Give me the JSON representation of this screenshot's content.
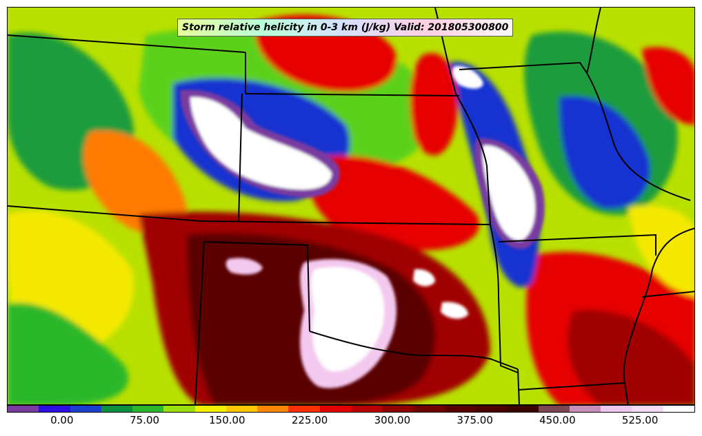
{
  "map": {
    "title": "Storm relative helicity in 0-3 km (J/kg) Valid: 201805300800",
    "background_color": "#b8e000",
    "border_color": "#000000",
    "field_colors": {
      "light_green": "#5bd11a",
      "green": "#1b9c3d",
      "yellow": "#f5e800",
      "gold": "#ffc000",
      "orange": "#ff7a00",
      "red": "#e60000",
      "dark_red": "#a00000",
      "maroon": "#5a0000",
      "blue": "#1733d0",
      "purple": "#7a3aa0",
      "pink": "#f4c9f0",
      "white": "#ffffff"
    }
  },
  "colorbar": {
    "colors": [
      "#7a3aa0",
      "#2a0fe0",
      "#1b3fcf",
      "#0f9040",
      "#2cb82c",
      "#9be00c",
      "#f0f000",
      "#ffc800",
      "#ff8800",
      "#ff3000",
      "#e40000",
      "#b80000",
      "#900000",
      "#6e0000",
      "#580000",
      "#4a0000",
      "#3a0000",
      "#7c4652",
      "#c890b8",
      "#ecc8f0",
      "#f4dcf6",
      "#ffffff"
    ],
    "tick_labels": [
      "0.00",
      "75.00",
      "150.00",
      "225.00",
      "300.00",
      "375.00",
      "450.00",
      "525.00"
    ],
    "tick_values": [
      0,
      75,
      150,
      225,
      300,
      375,
      450,
      525
    ],
    "range": [
      -50,
      575
    ]
  }
}
